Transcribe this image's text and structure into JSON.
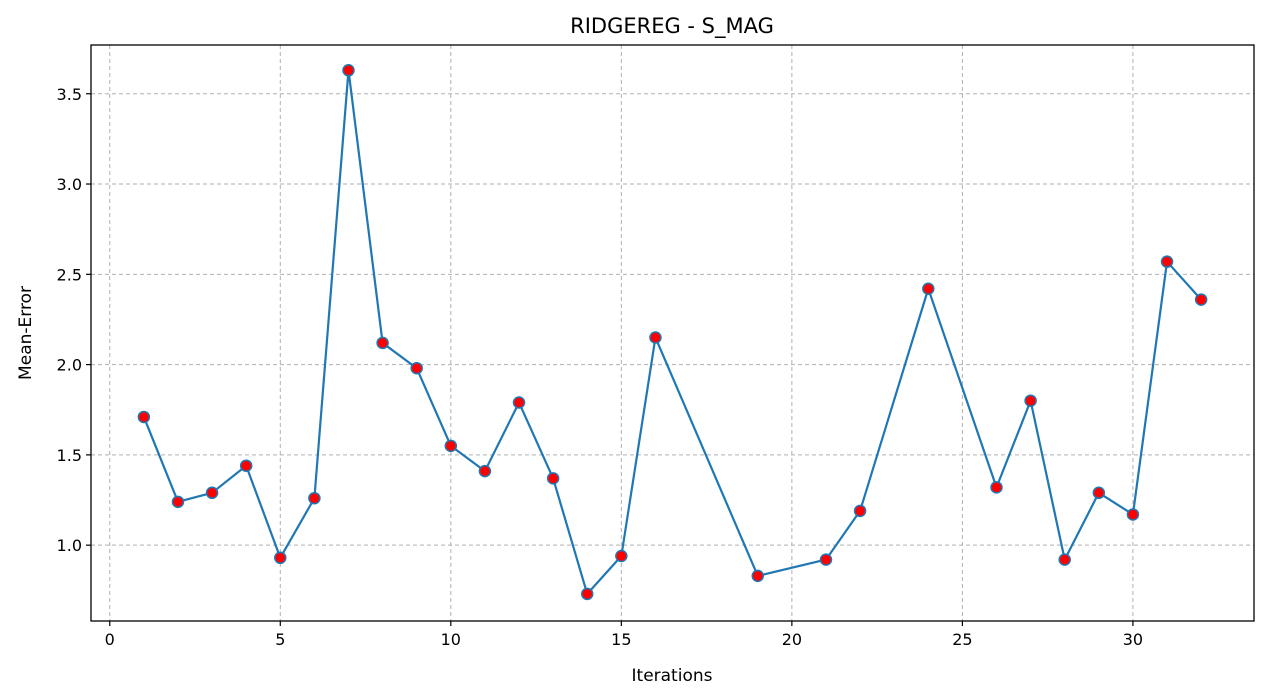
{
  "chart_data": {
    "type": "line",
    "title": "RIDGEREG - S_MAG",
    "xlabel": "Iterations",
    "ylabel": "Mean-Error",
    "xlim": [
      -0.55,
      33.55
    ],
    "ylim": [
      0.58,
      3.77
    ],
    "xticks": [
      0,
      5,
      10,
      15,
      20,
      25,
      30
    ],
    "yticks": [
      1.0,
      1.5,
      2.0,
      2.5,
      3.0,
      3.5
    ],
    "ytick_labels": [
      "1.0",
      "1.5",
      "2.0",
      "2.5",
      "3.0",
      "3.5"
    ],
    "grid": true,
    "colors": {
      "line": "#1f77b4",
      "marker_face": "#ff0000",
      "marker_edge": "#1f77b4",
      "grid": "#b0b0b0"
    },
    "series": [
      {
        "x": [
          1,
          2,
          3,
          4,
          5,
          6,
          7,
          8,
          9,
          10,
          11,
          12,
          13,
          14,
          15,
          16,
          19,
          21,
          22,
          24,
          26,
          27,
          28,
          29,
          30,
          31,
          32
        ],
        "y": [
          1.71,
          1.24,
          1.29,
          1.44,
          0.93,
          1.26,
          3.63,
          2.12,
          1.98,
          1.55,
          1.41,
          1.79,
          1.37,
          0.73,
          0.94,
          2.15,
          0.83,
          0.92,
          1.19,
          2.42,
          1.32,
          1.8,
          0.92,
          1.29,
          1.17,
          2.57,
          2.36
        ]
      }
    ]
  }
}
